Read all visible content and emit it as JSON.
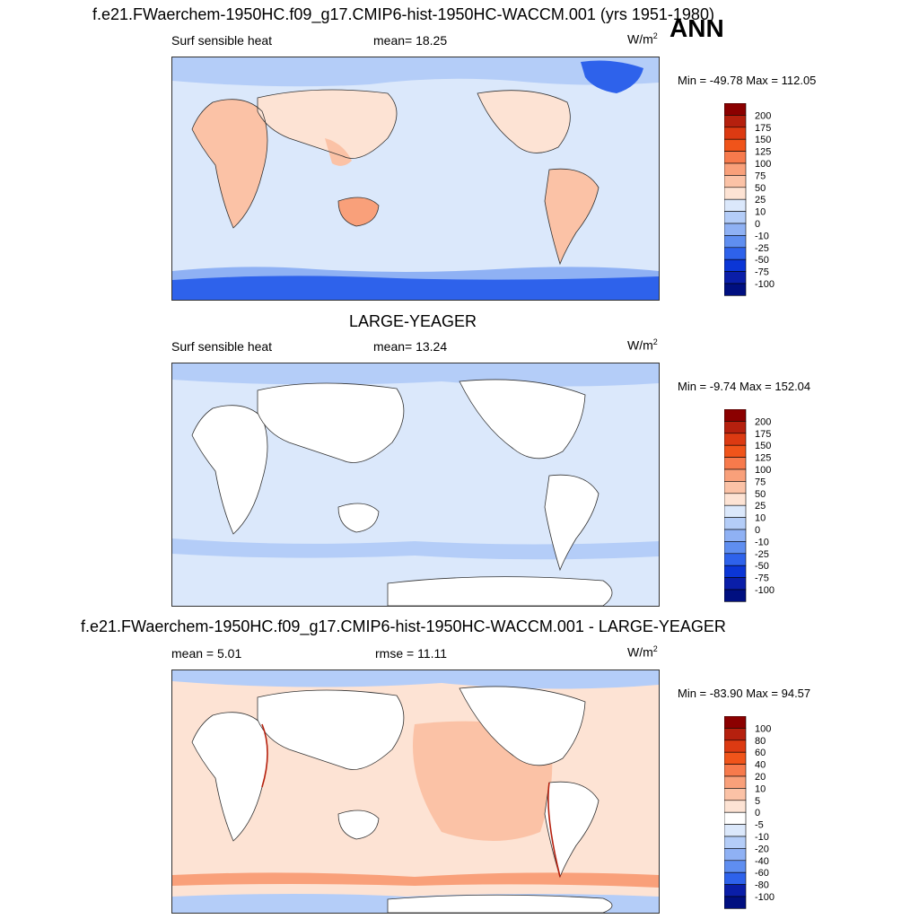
{
  "season": "ANN",
  "panels": [
    {
      "id": "test",
      "title": "f.e21.FWaerchem-1950HC.f09_g17.CMIP6-hist-1950HC-WACCM.001 (yrs 1951-1980)",
      "left_label": "Surf sensible heat",
      "center_label": "mean=  18.25",
      "units_base": "W/m",
      "units_exp": "2",
      "minmax": "Min = -49.78 Max = 112.05",
      "colorbar": {
        "levels": [
          "200",
          "175",
          "150",
          "125",
          "100",
          "75",
          "50",
          "25",
          "10",
          "0",
          "-10",
          "-25",
          "-50",
          "-75",
          "-100"
        ],
        "colors": [
          "#8b0000",
          "#b5200e",
          "#dc3a12",
          "#f0541a",
          "#f77a4c",
          "#f9a07a",
          "#fbc2a6",
          "#fde3d4",
          "#dbe8fb",
          "#b4cdf8",
          "#8fb1f4",
          "#5f8ef0",
          "#2e62eb",
          "#0b36d6",
          "#0a1ea8",
          "#000f80"
        ]
      }
    },
    {
      "id": "control",
      "title": "LARGE-YEAGER",
      "left_label": "Surf sensible heat",
      "center_label": "mean=  13.24",
      "units_base": "W/m",
      "units_exp": "2",
      "minmax": "Min =  -9.74 Max = 152.04",
      "colorbar": {
        "levels": [
          "200",
          "175",
          "150",
          "125",
          "100",
          "75",
          "50",
          "25",
          "10",
          "0",
          "-10",
          "-25",
          "-50",
          "-75",
          "-100"
        ],
        "colors": [
          "#8b0000",
          "#b5200e",
          "#dc3a12",
          "#f0541a",
          "#f77a4c",
          "#f9a07a",
          "#fbc2a6",
          "#fde3d4",
          "#dbe8fb",
          "#b4cdf8",
          "#8fb1f4",
          "#5f8ef0",
          "#2e62eb",
          "#0b36d6",
          "#0a1ea8",
          "#000f80"
        ]
      }
    },
    {
      "id": "diff",
      "title": "f.e21.FWaerchem-1950HC.f09_g17.CMIP6-hist-1950HC-WACCM.001 - LARGE-YEAGER",
      "left_label": "mean =   5.01",
      "center_label": "rmse =  11.11",
      "units_base": "W/m",
      "units_exp": "2",
      "minmax": "Min = -83.90 Max =  94.57",
      "colorbar": {
        "levels": [
          "100",
          "80",
          "60",
          "40",
          "20",
          "10",
          "5",
          "0",
          "-5",
          "-10",
          "-20",
          "-40",
          "-60",
          "-80",
          "-100"
        ],
        "colors": [
          "#8b0000",
          "#b5200e",
          "#dc3a12",
          "#f0541a",
          "#f77a4c",
          "#f9a07a",
          "#fbc2a6",
          "#fde3d4",
          "#ffffff",
          "#dbe8fb",
          "#b4cdf8",
          "#8fb1f4",
          "#5f8ef0",
          "#2e62eb",
          "#0a1ea8",
          "#000f80"
        ]
      }
    }
  ],
  "chart_data": [
    {
      "type": "heatmap",
      "title": "f.e21.FWaerchem-1950HC.f09_g17.CMIP6-hist-1950HC-WACCM.001 (yrs 1951-1980)",
      "variable": "Surf sensible heat",
      "mean": 18.25,
      "min": -49.78,
      "max": 112.05,
      "units": "W/m2",
      "contour_levels": [
        -100,
        -75,
        -50,
        -25,
        -10,
        0,
        10,
        25,
        50,
        75,
        100,
        125,
        150,
        175,
        200
      ]
    },
    {
      "type": "heatmap",
      "title": "LARGE-YEAGER",
      "variable": "Surf sensible heat",
      "mean": 13.24,
      "min": -9.74,
      "max": 152.04,
      "units": "W/m2",
      "contour_levels": [
        -100,
        -75,
        -50,
        -25,
        -10,
        0,
        10,
        25,
        50,
        75,
        100,
        125,
        150,
        175,
        200
      ]
    },
    {
      "type": "heatmap",
      "title": "f.e21.FWaerchem-1950HC.f09_g17.CMIP6-hist-1950HC-WACCM.001 - LARGE-YEAGER",
      "mean": 5.01,
      "rmse": 11.11,
      "min": -83.9,
      "max": 94.57,
      "units": "W/m2",
      "contour_levels": [
        -100,
        -80,
        -60,
        -40,
        -20,
        -10,
        -5,
        0,
        5,
        10,
        20,
        40,
        60,
        80,
        100
      ]
    }
  ]
}
